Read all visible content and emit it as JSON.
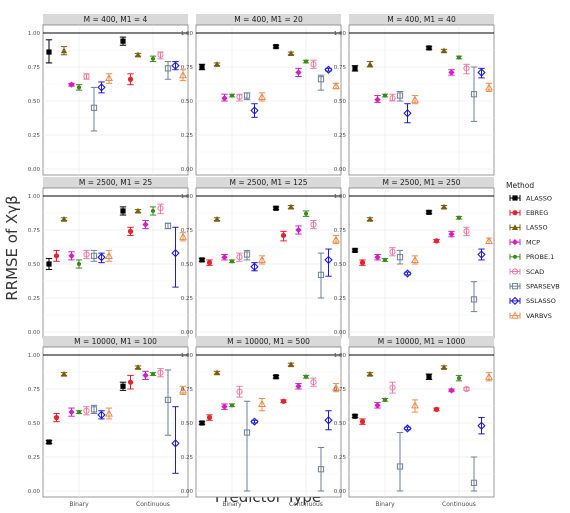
{
  "chart_data": {
    "type": "scatter",
    "ylabel": "RRMSE of Xγβ",
    "xlabel": "Predictor Type",
    "categories": [
      "Binary",
      "Continuous"
    ],
    "ylim": [
      0,
      1
    ],
    "yticks": [
      "0.00",
      "0.25",
      "0.50",
      "0.75",
      "1.00"
    ],
    "grid": true,
    "legend": {
      "title": "Method",
      "position": "right",
      "entries": [
        {
          "name": "ALASSO",
          "color": "#000000",
          "shape": "square"
        },
        {
          "name": "EBREG",
          "color": "#e8222b",
          "shape": "circle"
        },
        {
          "name": "LASSO",
          "color": "#7a5c0c",
          "shape": "triangle"
        },
        {
          "name": "MCP",
          "color": "#d21fc0",
          "shape": "diamond"
        },
        {
          "name": "PROBE.1",
          "color": "#3b8a1c",
          "shape": "circle-small"
        },
        {
          "name": "SCAD",
          "color": "#f27ba3",
          "shape": "circle-open"
        },
        {
          "name": "SPARSEVB",
          "color": "#6e7f99",
          "shape": "square-open"
        },
        {
          "name": "SSLASSO",
          "color": "#1a1ae0",
          "shape": "diamond-open"
        },
        {
          "name": "VARBVS",
          "color": "#f08c4c",
          "shape": "triangle-open"
        }
      ]
    },
    "panels": [
      {
        "title": "M = 400, M1 = 4",
        "Binary": [
          [
            0.86,
            0.78,
            0.95
          ],
          [
            null,
            null,
            null
          ],
          [
            0.87,
            0.84,
            0.9
          ],
          [
            0.62,
            0.61,
            0.63
          ],
          [
            0.6,
            0.58,
            0.62
          ],
          [
            0.68,
            0.66,
            0.7
          ],
          [
            0.45,
            0.28,
            0.6
          ],
          [
            0.6,
            0.56,
            0.64
          ],
          [
            0.67,
            0.63,
            0.7
          ]
        ],
        "Continuous": [
          [
            0.94,
            0.91,
            0.97
          ],
          [
            0.66,
            0.62,
            0.7
          ],
          [
            0.84,
            0.83,
            0.85
          ],
          [
            null,
            null,
            null
          ],
          [
            0.81,
            0.79,
            0.83
          ],
          [
            0.84,
            0.81,
            0.86
          ],
          [
            0.74,
            0.66,
            0.79
          ],
          [
            0.76,
            0.73,
            0.79
          ],
          [
            0.69,
            0.65,
            0.73
          ]
        ]
      },
      {
        "title": "M = 400, M1 = 20",
        "Binary": [
          [
            0.75,
            0.73,
            0.77
          ],
          [
            null,
            null,
            null
          ],
          [
            0.77,
            0.76,
            0.78
          ],
          [
            0.52,
            0.5,
            0.55
          ],
          [
            0.54,
            0.53,
            0.55
          ],
          [
            0.53,
            0.5,
            0.55
          ],
          [
            0.54,
            0.51,
            0.56
          ],
          [
            0.43,
            0.38,
            0.48
          ],
          [
            0.53,
            0.5,
            0.56
          ]
        ],
        "Continuous": [
          [
            0.9,
            0.89,
            0.91
          ],
          [
            null,
            null,
            null
          ],
          [
            0.85,
            0.84,
            0.86
          ],
          [
            0.71,
            0.68,
            0.74
          ],
          [
            0.79,
            0.78,
            0.8
          ],
          [
            0.77,
            0.74,
            0.8
          ],
          [
            0.66,
            0.58,
            0.69
          ],
          [
            0.73,
            0.72,
            0.74
          ],
          [
            0.61,
            0.59,
            0.63
          ]
        ]
      },
      {
        "title": "M = 400, M1 = 40",
        "Binary": [
          [
            0.74,
            0.72,
            0.76
          ],
          [
            null,
            null,
            null
          ],
          [
            0.77,
            0.75,
            0.79
          ],
          [
            0.51,
            0.49,
            0.54
          ],
          [
            0.54,
            0.53,
            0.55
          ],
          [
            0.52,
            0.5,
            0.55
          ],
          [
            0.54,
            0.5,
            0.57
          ],
          [
            0.41,
            0.34,
            0.48
          ],
          [
            0.51,
            0.48,
            0.54
          ]
        ],
        "Continuous": [
          [
            0.89,
            0.88,
            0.9
          ],
          [
            null,
            null,
            null
          ],
          [
            0.87,
            0.86,
            0.88
          ],
          [
            0.71,
            0.69,
            0.73
          ],
          [
            0.82,
            0.81,
            0.83
          ],
          [
            0.74,
            0.7,
            0.77
          ],
          [
            0.55,
            0.35,
            0.75
          ],
          [
            0.71,
            0.67,
            0.74
          ],
          [
            0.6,
            0.57,
            0.63
          ]
        ]
      },
      {
        "title": "M = 2500, M1 = 25",
        "Binary": [
          [
            0.5,
            0.46,
            0.54
          ],
          [
            0.56,
            0.52,
            0.6
          ],
          [
            0.83,
            0.82,
            0.84
          ],
          [
            0.56,
            0.53,
            0.59
          ],
          [
            0.5,
            0.47,
            0.53
          ],
          [
            0.57,
            0.54,
            0.6
          ],
          [
            0.56,
            0.52,
            0.6
          ],
          [
            0.55,
            0.51,
            0.58
          ],
          [
            0.56,
            0.52,
            0.6
          ]
        ],
        "Continuous": [
          [
            0.89,
            0.86,
            0.92
          ],
          [
            0.74,
            0.71,
            0.77
          ],
          [
            0.89,
            0.88,
            0.9
          ],
          [
            0.79,
            0.76,
            0.82
          ],
          [
            0.89,
            0.86,
            0.92
          ],
          [
            0.91,
            0.87,
            0.94
          ],
          [
            0.78,
            0.76,
            0.8
          ],
          [
            0.58,
            0.33,
            0.77
          ],
          [
            0.7,
            0.67,
            0.73
          ]
        ]
      },
      {
        "title": "M = 2500, M1 = 125",
        "Binary": [
          [
            0.53,
            0.52,
            0.54
          ],
          [
            0.51,
            0.49,
            0.53
          ],
          [
            0.83,
            0.82,
            0.84
          ],
          [
            0.55,
            0.53,
            0.57
          ],
          [
            0.52,
            0.51,
            0.53
          ],
          [
            0.55,
            0.52,
            0.58
          ],
          [
            0.57,
            0.53,
            0.6
          ],
          [
            0.48,
            0.45,
            0.51
          ],
          [
            0.53,
            0.5,
            0.56
          ]
        ],
        "Continuous": [
          [
            0.91,
            0.9,
            0.92
          ],
          [
            0.71,
            0.67,
            0.74
          ],
          [
            0.92,
            0.91,
            0.93
          ],
          [
            0.75,
            0.72,
            0.78
          ],
          [
            0.87,
            0.85,
            0.89
          ],
          [
            0.79,
            0.76,
            0.82
          ],
          [
            0.42,
            0.25,
            0.58
          ],
          [
            0.53,
            0.41,
            0.61
          ],
          [
            0.68,
            0.65,
            0.71
          ]
        ]
      },
      {
        "title": "M = 2500, M1 = 250",
        "Binary": [
          [
            0.6,
            0.59,
            0.61
          ],
          [
            0.51,
            0.49,
            0.53
          ],
          [
            0.83,
            0.82,
            0.84
          ],
          [
            0.55,
            0.53,
            0.57
          ],
          [
            0.53,
            0.52,
            0.54
          ],
          [
            0.59,
            0.56,
            0.62
          ],
          [
            0.55,
            0.5,
            0.6
          ],
          [
            0.43,
            0.42,
            0.44
          ],
          [
            0.53,
            0.5,
            0.56
          ]
        ],
        "Continuous": [
          [
            0.88,
            0.87,
            0.89
          ],
          [
            0.67,
            0.66,
            0.68
          ],
          [
            0.92,
            0.91,
            0.93
          ],
          [
            0.72,
            0.7,
            0.74
          ],
          [
            0.84,
            0.83,
            0.85
          ],
          [
            0.74,
            0.71,
            0.77
          ],
          [
            0.24,
            0.15,
            0.37
          ],
          [
            0.57,
            0.53,
            0.61
          ],
          [
            0.67,
            0.65,
            0.69
          ]
        ]
      },
      {
        "title": "M = 10000, M1 = 100",
        "Binary": [
          [
            0.36,
            0.35,
            0.37
          ],
          [
            0.54,
            0.51,
            0.57
          ],
          [
            0.86,
            0.85,
            0.87
          ],
          [
            0.58,
            0.55,
            0.61
          ],
          [
            0.58,
            0.57,
            0.59
          ],
          [
            0.59,
            0.56,
            0.62
          ],
          [
            0.6,
            0.57,
            0.63
          ],
          [
            0.56,
            0.53,
            0.59
          ],
          [
            0.57,
            0.53,
            0.61
          ]
        ],
        "Continuous": [
          [
            0.77,
            0.74,
            0.8
          ],
          [
            0.8,
            0.75,
            0.85
          ],
          [
            0.91,
            0.9,
            0.92
          ],
          [
            0.85,
            0.82,
            0.88
          ],
          [
            0.86,
            0.85,
            0.87
          ],
          [
            0.87,
            0.84,
            0.9
          ],
          [
            0.67,
            0.41,
            0.89
          ],
          [
            0.35,
            0.13,
            0.62
          ],
          [
            0.74,
            0.71,
            0.77
          ]
        ]
      },
      {
        "title": "M = 10000, M1 = 500",
        "Binary": [
          [
            0.5,
            0.49,
            0.51
          ],
          [
            0.54,
            0.52,
            0.56
          ],
          [
            0.87,
            0.86,
            0.88
          ],
          [
            0.62,
            0.6,
            0.64
          ],
          [
            0.63,
            0.62,
            0.64
          ],
          [
            0.73,
            0.69,
            0.77
          ],
          [
            0.43,
            0.0,
            0.66
          ],
          [
            0.51,
            0.5,
            0.52
          ],
          [
            0.64,
            0.59,
            0.68
          ]
        ],
        "Continuous": [
          [
            0.84,
            0.83,
            0.85
          ],
          [
            0.66,
            0.65,
            0.67
          ],
          [
            0.93,
            0.92,
            0.94
          ],
          [
            0.77,
            0.75,
            0.79
          ],
          [
            0.84,
            0.83,
            0.85
          ],
          [
            0.8,
            0.77,
            0.83
          ],
          [
            0.16,
            0.0,
            0.32
          ],
          [
            0.52,
            0.45,
            0.59
          ],
          [
            0.76,
            0.73,
            0.79
          ]
        ]
      },
      {
        "title": "M = 10000, M1 = 1000",
        "Binary": [
          [
            0.55,
            0.54,
            0.56
          ],
          [
            0.51,
            0.49,
            0.53
          ],
          [
            0.86,
            0.85,
            0.87
          ],
          [
            0.63,
            0.61,
            0.65
          ],
          [
            0.67,
            0.66,
            0.68
          ],
          [
            0.76,
            0.72,
            0.8
          ],
          [
            0.18,
            0.0,
            0.43
          ],
          [
            0.46,
            0.45,
            0.47
          ],
          [
            0.63,
            0.58,
            0.67
          ]
        ],
        "Continuous": [
          [
            0.84,
            0.82,
            0.86
          ],
          [
            0.6,
            0.59,
            0.61
          ],
          [
            0.91,
            0.9,
            0.92
          ],
          [
            0.74,
            0.73,
            0.75
          ],
          [
            0.83,
            0.81,
            0.85
          ],
          [
            0.75,
            0.74,
            0.76
          ],
          [
            0.06,
            0.0,
            0.25
          ],
          [
            0.48,
            0.42,
            0.54
          ],
          [
            0.84,
            0.81,
            0.87
          ]
        ]
      }
    ]
  }
}
